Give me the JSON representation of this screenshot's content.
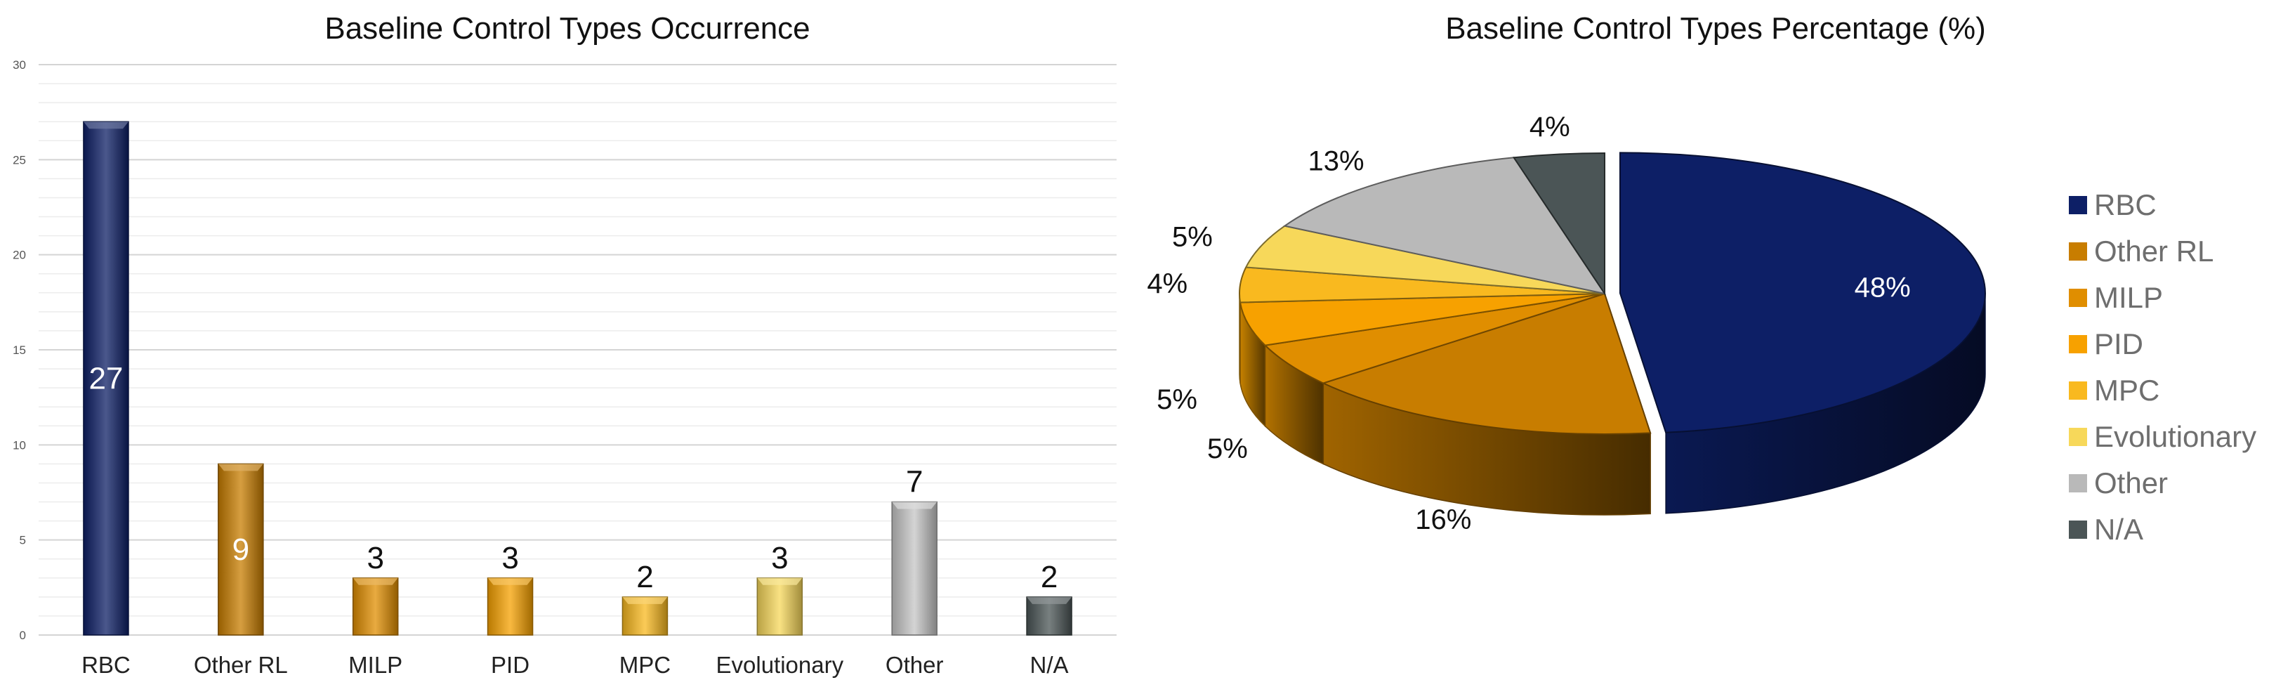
{
  "chart_data": [
    {
      "type": "bar",
      "title": "Baseline Control Types Occurrence",
      "xlabel": "",
      "ylabel": "",
      "categories": [
        "RBC",
        "Other RL",
        "MILP",
        "PID",
        "MPC",
        "Evolutionary",
        "Other",
        "N/A"
      ],
      "values": [
        27,
        9,
        3,
        3,
        2,
        3,
        7,
        2
      ],
      "colors": [
        "#0d1f66",
        "#c87d00",
        "#e08e00",
        "#f7a100",
        "#f9b91f",
        "#f7d85a",
        "#c6c6c6",
        "#4b5556"
      ],
      "ylim": [
        0,
        30
      ],
      "yticks": [
        "0",
        "5",
        "10",
        "15",
        "20",
        "25",
        "30"
      ],
      "data_labels": [
        "27",
        "9",
        "3",
        "3",
        "2",
        "3",
        "7",
        "2"
      ],
      "grid": true,
      "legend": "none"
    },
    {
      "type": "pie",
      "title": "Baseline Control Types Percentage (%)",
      "labels": [
        "RBC",
        "Other RL",
        "MILP",
        "PID",
        "MPC",
        "Evolutionary",
        "Other",
        "N/A"
      ],
      "values": [
        48,
        16,
        5,
        5,
        4,
        5,
        13,
        4
      ],
      "data_labels": [
        "48%",
        "16%",
        "5%",
        "5%",
        "4%",
        "5%",
        "13%",
        "4%"
      ],
      "colors": [
        "#0d1f66",
        "#c87d00",
        "#e08e00",
        "#f7a100",
        "#f9b91f",
        "#f7d85a",
        "#b9b9b9",
        "#4b5556"
      ],
      "legend": "right",
      "style": "3d-exploded"
    }
  ]
}
